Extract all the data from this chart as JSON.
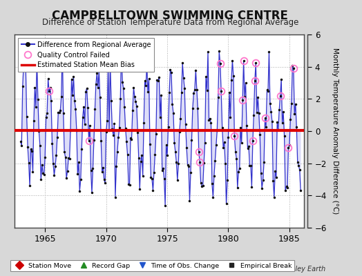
{
  "title": "CAMPBELLTOWN SWIMMING CENTRE",
  "subtitle": "Difference of Station Temperature Data from Regional Average",
  "ylabel_right": "Monthly Temperature Anomaly Difference (°C)",
  "bias_value": 0.05,
  "xlim": [
    1962.5,
    1986.2
  ],
  "ylim": [
    -6,
    6
  ],
  "yticks": [
    -6,
    -4,
    -2,
    0,
    2,
    4,
    6
  ],
  "xticks": [
    1965,
    1970,
    1975,
    1980,
    1985
  ],
  "line_color": "#3333cc",
  "fill_color": "#aaaaee",
  "bias_color": "#dd0000",
  "qc_color": "#ff77cc",
  "dot_color": "#111111",
  "bg_color": "#d8d8d8",
  "plot_bg_color": "#ffffff",
  "title_fontsize": 12,
  "subtitle_fontsize": 8.5,
  "footer_text": "Berkeley Earth",
  "seed": 17,
  "n_years": 23,
  "start_year": 1963
}
